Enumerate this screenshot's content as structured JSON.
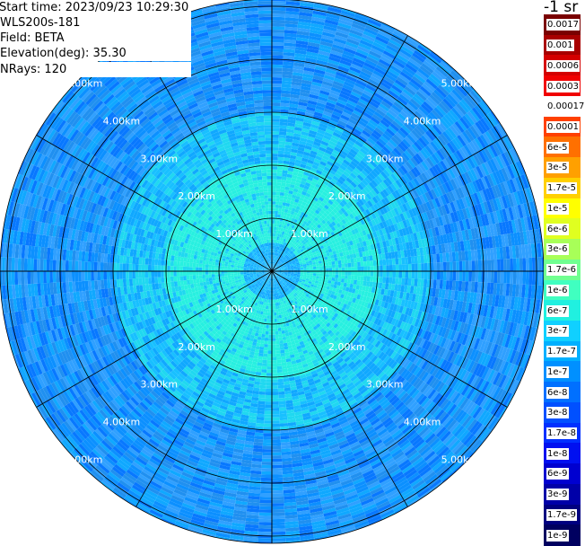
{
  "info": {
    "start_time": "Start time: 2023/09/23 10:29:30",
    "instrument": "WLS200s-181",
    "field": "Field: BETA",
    "elevation": "Elevation(deg): 35.30",
    "nrays": "NRays: 120"
  },
  "colorbar": {
    "unit": "-1 sr",
    "labels": [
      "0.0017",
      "0.001",
      "0.0006",
      "0.0003",
      "0.00017",
      "0.0001",
      "6e-5",
      "3e-5",
      "1.7e-5",
      "1e-5",
      "6e-6",
      "3e-6",
      "1.7e-6",
      "1e-6",
      "6e-7",
      "3e-7",
      "1.7e-7",
      "1e-7",
      "6e-8",
      "3e-8",
      "1.7e-8",
      "1e-8",
      "6e-9",
      "3e-9",
      "1.7e-9",
      "1e-9"
    ],
    "colors": [
      "#7a0000",
      "#a80000",
      "#d40000",
      "#f00000",
      "#ffffff",
      "#ff4000",
      "#ff7000",
      "#ffa000",
      "#ffd000",
      "#ffff00",
      "#e0ff20",
      "#a8ff58",
      "#70ff90",
      "#40ffc0",
      "#20f0e0",
      "#10d0ff",
      "#00b0ff",
      "#0090ff",
      "#0070ff",
      "#0050ff",
      "#0030ff",
      "#0010f0",
      "#0000d0",
      "#0000a8",
      "#000080",
      "#000060"
    ]
  },
  "ppi": {
    "range_labels": [
      "1.00km",
      "2.00km",
      "3.00km",
      "4.00km",
      "5.00km"
    ],
    "range_rings_km": [
      1,
      2,
      3,
      4,
      5
    ],
    "max_range_km": 5.1,
    "spokes_deg": [
      0,
      30,
      60,
      90,
      120,
      150,
      180,
      210,
      240,
      270,
      300,
      330
    ],
    "field_colors": [
      "#28f0e0",
      "#20d8f0",
      "#18c0ff",
      "#10a8ff",
      "#0c90ff",
      "#0878ff",
      "#2090f0",
      "#30a0ff"
    ]
  }
}
